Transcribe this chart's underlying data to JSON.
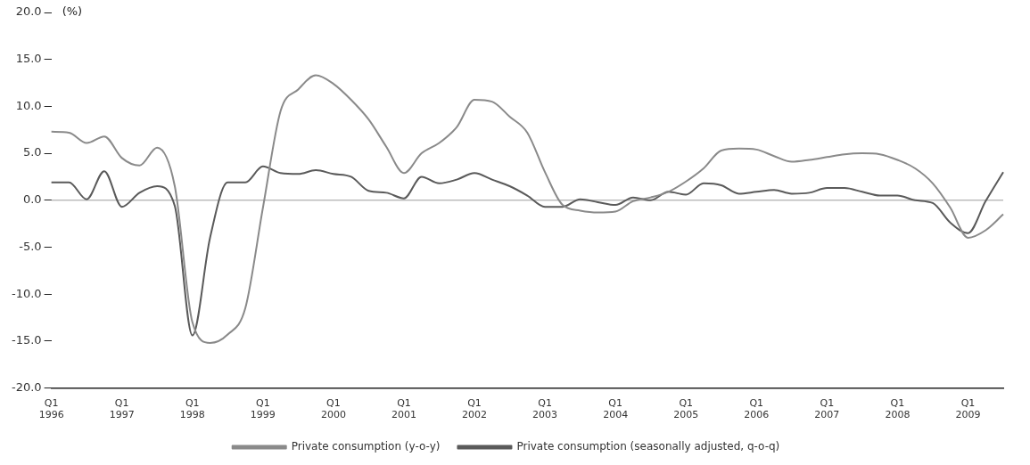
{
  "chart_data": {
    "type": "line",
    "ylabel": "(%)",
    "categories": [
      "Q1 1996",
      null,
      null,
      null,
      "Q1 1997",
      null,
      null,
      null,
      "Q1 1998",
      null,
      null,
      null,
      "Q1 1999",
      null,
      null,
      null,
      "Q1 2000",
      null,
      null,
      null,
      "Q1 2001",
      null,
      null,
      null,
      "Q1 2002",
      null,
      null,
      null,
      "Q1 2003",
      null,
      null,
      null,
      "Q1 2004",
      null,
      null,
      null,
      "Q1 2005",
      null,
      null,
      null,
      "Q1 2006",
      null,
      null,
      null,
      "Q1 2007",
      null,
      null,
      null,
      "Q1 2008",
      null,
      null,
      null,
      "Q1 2009",
      null,
      null
    ],
    "series": [
      {
        "name": "Private consumption (y-o-y)",
        "color": "#8a8a8a",
        "values": [
          7.3,
          7.2,
          6.1,
          6.8,
          4.5,
          3.7,
          5.6,
          1.5,
          -13,
          -15.2,
          -14.3,
          -11.5,
          -0.8,
          9.5,
          11.8,
          13.3,
          12.4,
          10.7,
          8.6,
          5.7,
          2.9,
          5.0,
          6.1,
          7.8,
          10.7,
          10.5,
          8.9,
          7.2,
          3.0,
          -0.5,
          -1.1,
          -1.3,
          -1.2,
          -0.1,
          0.3,
          0.9,
          2.0,
          3.4,
          5.3,
          5.5,
          5.4,
          4.7,
          4.1,
          4.3,
          4.6,
          4.9,
          5.0,
          4.9,
          4.3,
          3.4,
          1.8,
          -0.8,
          -4.0,
          -3.2,
          -1.5
        ]
      },
      {
        "name": "Private consumption (seasonally adjusted, q-o-q)",
        "color": "#5a5a5a",
        "values": [
          1.9,
          1.9,
          0.1,
          3.1,
          -0.7,
          0.8,
          1.5,
          -0.6,
          -14.4,
          -4.0,
          1.9,
          1.9,
          3.6,
          2.9,
          2.8,
          3.2,
          2.8,
          2.5,
          1.0,
          0.8,
          0.2,
          2.5,
          1.8,
          2.2,
          2.9,
          2.2,
          1.5,
          0.5,
          -0.7,
          -0.7,
          0.1,
          -0.2,
          -0.5,
          0.3,
          0.0,
          0.9,
          0.6,
          1.8,
          1.6,
          0.7,
          0.9,
          1.1,
          0.7,
          0.8,
          1.3,
          1.3,
          0.9,
          0.5,
          0.5,
          0.0,
          -0.3,
          -2.4,
          -3.5,
          -0.1,
          3.0
        ]
      }
    ],
    "ylim": [
      -20,
      20
    ],
    "yticks": [
      {
        "value": -20,
        "label": "-20.0"
      },
      {
        "value": -15,
        "label": "-15.0"
      },
      {
        "value": -10,
        "label": "-10.0"
      },
      {
        "value": -5,
        "label": "-5.0"
      },
      {
        "value": 0,
        "label": "0.0"
      },
      {
        "value": 5,
        "label": "5.0"
      },
      {
        "value": 10,
        "label": "10.0"
      },
      {
        "value": 15,
        "label": "15.0"
      },
      {
        "value": 20,
        "label": "20.0"
      }
    ],
    "ref_lines": [
      {
        "axis": "y",
        "value": 0,
        "color": "#9a9a9a"
      }
    ],
    "grid": false,
    "legend": "bottom",
    "marker": "none",
    "line_style": "solid"
  }
}
